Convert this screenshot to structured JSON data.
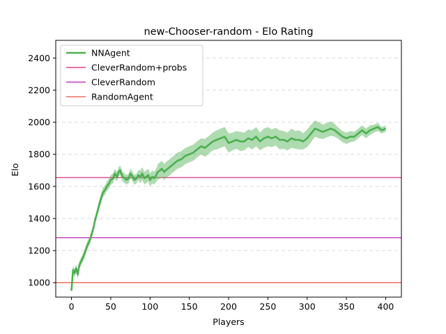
{
  "chart_data": {
    "type": "line",
    "title": "new-Chooser-random - Elo Rating",
    "xlabel": "Players",
    "ylabel": "Elo",
    "xlim": [
      -20,
      420
    ],
    "ylim": [
      910,
      2510
    ],
    "xticks": [
      0,
      50,
      100,
      150,
      200,
      250,
      300,
      350,
      400
    ],
    "yticks": [
      1000,
      1200,
      1400,
      1600,
      1800,
      2000,
      2200,
      2400
    ],
    "grid": "horizontal dashed",
    "legend_position": "top-left",
    "series": [
      {
        "name": "NNAgent",
        "color": "#4caf50",
        "x": [
          0,
          2,
          4,
          6,
          8,
          10,
          12,
          15,
          18,
          20,
          23,
          25,
          28,
          30,
          33,
          35,
          38,
          40,
          43,
          45,
          48,
          50,
          53,
          55,
          58,
          60,
          62,
          65,
          68,
          70,
          73,
          75,
          78,
          80,
          83,
          85,
          88,
          90,
          93,
          95,
          98,
          100,
          103,
          105,
          108,
          110,
          113,
          115,
          118,
          120,
          125,
          130,
          135,
          140,
          145,
          150,
          155,
          160,
          165,
          170,
          175,
          180,
          185,
          190,
          195,
          200,
          205,
          210,
          215,
          220,
          225,
          230,
          235,
          240,
          245,
          250,
          255,
          260,
          265,
          270,
          275,
          280,
          285,
          290,
          295,
          300,
          305,
          310,
          315,
          320,
          325,
          330,
          335,
          340,
          345,
          350,
          355,
          360,
          365,
          370,
          375,
          380,
          385,
          390,
          395,
          400
        ],
        "values": [
          950,
          1080,
          1060,
          1090,
          1050,
          1110,
          1130,
          1160,
          1200,
          1230,
          1260,
          1290,
          1340,
          1390,
          1440,
          1480,
          1530,
          1560,
          1580,
          1600,
          1620,
          1640,
          1650,
          1680,
          1660,
          1690,
          1700,
          1660,
          1650,
          1640,
          1650,
          1680,
          1660,
          1640,
          1650,
          1670,
          1660,
          1680,
          1650,
          1660,
          1670,
          1640,
          1660,
          1650,
          1670,
          1690,
          1700,
          1710,
          1690,
          1700,
          1720,
          1740,
          1760,
          1770,
          1790,
          1800,
          1810,
          1830,
          1850,
          1840,
          1860,
          1880,
          1890,
          1900,
          1910,
          1870,
          1880,
          1890,
          1880,
          1880,
          1900,
          1890,
          1910,
          1880,
          1900,
          1910,
          1900,
          1910,
          1890,
          1890,
          1880,
          1900,
          1890,
          1890,
          1880,
          1900,
          1930,
          1960,
          1950,
          1940,
          1950,
          1960,
          1950,
          1930,
          1910,
          1900,
          1910,
          1910,
          1930,
          1950,
          1930,
          1950,
          1960,
          1970,
          1950,
          1960
        ],
        "band": [
          20,
          25,
          25,
          25,
          25,
          25,
          25,
          25,
          25,
          25,
          25,
          25,
          25,
          25,
          25,
          30,
          30,
          30,
          30,
          30,
          30,
          30,
          30,
          30,
          30,
          30,
          30,
          30,
          30,
          30,
          30,
          30,
          30,
          30,
          30,
          30,
          40,
          40,
          40,
          40,
          40,
          40,
          40,
          40,
          40,
          50,
          50,
          50,
          50,
          50,
          50,
          50,
          50,
          50,
          50,
          50,
          50,
          50,
          50,
          55,
          55,
          55,
          60,
          60,
          60,
          60,
          55,
          55,
          60,
          55,
          55,
          60,
          60,
          55,
          60,
          60,
          55,
          55,
          60,
          55,
          55,
          60,
          55,
          60,
          50,
          55,
          55,
          50,
          50,
          45,
          45,
          45,
          40,
          35,
          35,
          35,
          35,
          30,
          30,
          30,
          30,
          30,
          25,
          25,
          20,
          20
        ]
      },
      {
        "name": "CleverRandom+probs",
        "color": "#e0196e",
        "constant": 1655
      },
      {
        "name": "CleverRandom",
        "color": "#b515b5",
        "constant": 1280
      },
      {
        "name": "RandomAgent",
        "color": "#ef4f3d",
        "constant": 1000
      }
    ]
  }
}
